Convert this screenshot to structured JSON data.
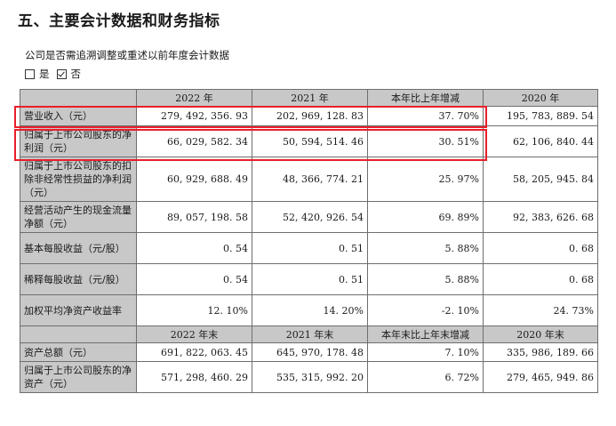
{
  "heading": "五、主要会计数据和财务指标",
  "note": "公司是否需追溯调整或重述以前年度会计数据",
  "choices": {
    "yes": "是",
    "no": "否",
    "selected": "否"
  },
  "table1": {
    "headers": [
      "",
      "2022 年",
      "2021 年",
      "本年比上年增减",
      "2020 年"
    ],
    "rows": [
      {
        "label": "营业收入（元）",
        "values": [
          "279, 492, 356. 93",
          "202, 969, 128. 83",
          "37. 70%",
          "195, 783, 889. 54"
        ]
      },
      {
        "label": "归属于上市公司股东的净利润（元）",
        "values": [
          "66, 029, 582. 34",
          "50, 594, 514. 46",
          "30. 51%",
          "62, 106, 840. 44"
        ]
      },
      {
        "label": "归属于上市公司股东的扣除非经常性损益的净利润（元）",
        "values": [
          "60, 929, 688. 49",
          "48, 366, 774. 21",
          "25. 97%",
          "58, 205, 945. 84"
        ]
      },
      {
        "label": "经营活动产生的现金流量净额（元）",
        "values": [
          "89, 057, 198. 58",
          "52, 420, 926. 54",
          "69. 89%",
          "92, 383, 626. 68"
        ]
      },
      {
        "label": "基本每股收益（元/股）",
        "values": [
          "0. 54",
          "0. 51",
          "5. 88%",
          "0. 68"
        ]
      },
      {
        "label": "稀释每股收益（元/股）",
        "values": [
          "0. 54",
          "0. 51",
          "5. 88%",
          "0. 68"
        ]
      },
      {
        "label": "加权平均净资产收益率",
        "values": [
          "12. 10%",
          "14. 20%",
          "-2. 10%",
          "24. 73%"
        ]
      }
    ]
  },
  "table2": {
    "headers": [
      "",
      "2022 年末",
      "2021 年末",
      "本年末比上年末增减",
      "2020 年末"
    ],
    "rows": [
      {
        "label": "资产总额（元）",
        "values": [
          "691, 822, 063. 45",
          "645, 970, 178. 48",
          "7. 10%",
          "335, 986, 189. 66"
        ]
      },
      {
        "label": "归属于上市公司股东的净资产（元）",
        "values": [
          "571, 298, 460. 29",
          "535, 315, 992. 20",
          "6. 72%",
          "279, 465, 949. 86"
        ]
      }
    ]
  }
}
